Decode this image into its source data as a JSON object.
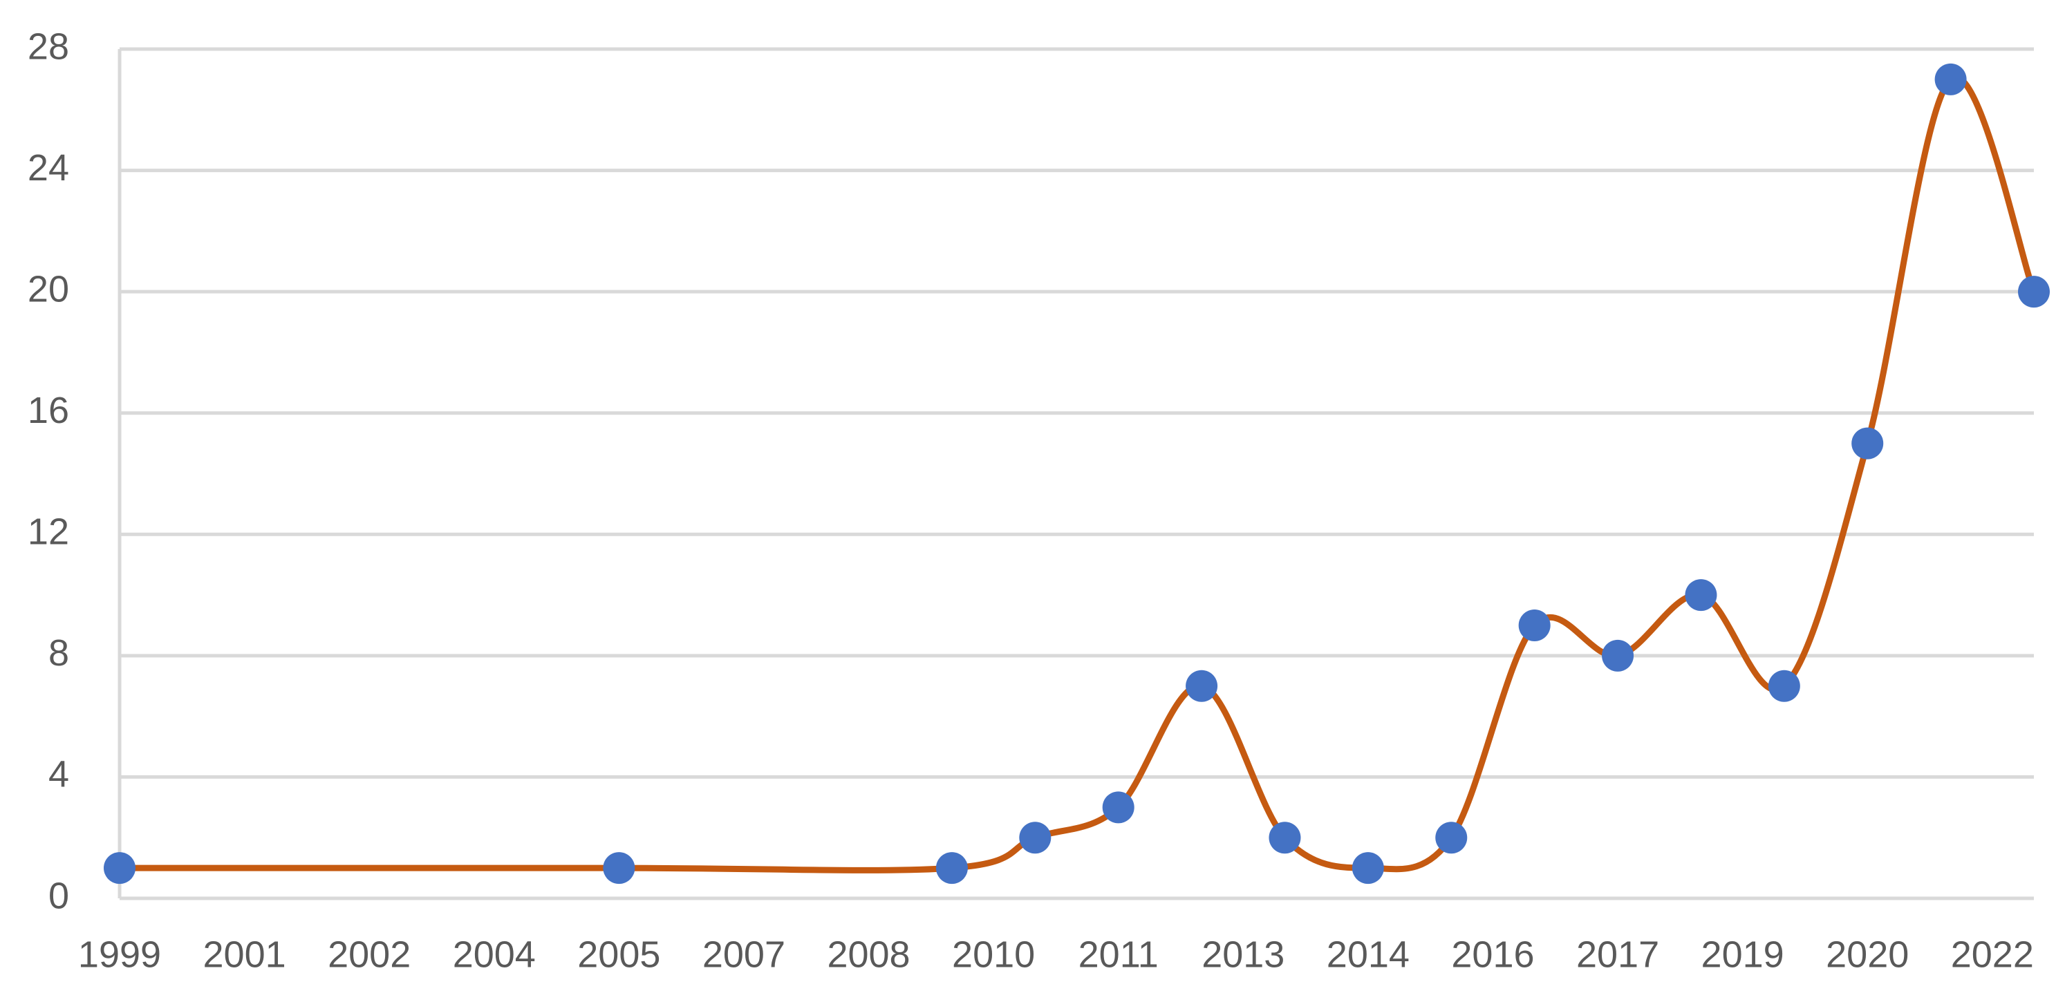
{
  "chart_data": {
    "type": "line",
    "x": [
      1999,
      2005,
      2009,
      2010,
      2011,
      2012,
      2013,
      2014,
      2015,
      2016,
      2017,
      2018,
      2019,
      2020,
      2021,
      2022
    ],
    "series": [
      {
        "color": "#c55a11",
        "marker_color": "#4472c4",
        "values": [
          1,
          1,
          1,
          2,
          3,
          7,
          2,
          1,
          2,
          9,
          8,
          10,
          7,
          15,
          27,
          20
        ]
      }
    ],
    "xlim": [
      1999,
      2022
    ],
    "xticks": [
      {
        "value": 1999,
        "label": "1999"
      },
      {
        "value": 2000.5,
        "label": "2001"
      },
      {
        "value": 2002,
        "label": "2002"
      },
      {
        "value": 2003.5,
        "label": "2004"
      },
      {
        "value": 2005,
        "label": "2005"
      },
      {
        "value": 2006.5,
        "label": "2007"
      },
      {
        "value": 2008,
        "label": "2008"
      },
      {
        "value": 2009.5,
        "label": "2010"
      },
      {
        "value": 2011,
        "label": "2011"
      },
      {
        "value": 2012.5,
        "label": "2013"
      },
      {
        "value": 2014,
        "label": "2014"
      },
      {
        "value": 2015.5,
        "label": "2016"
      },
      {
        "value": 2017,
        "label": "2017"
      },
      {
        "value": 2018.5,
        "label": "2019"
      },
      {
        "value": 2020,
        "label": "2020"
      },
      {
        "value": 2021.5,
        "label": "2022"
      }
    ],
    "ylim": [
      0,
      28
    ],
    "yticks": [
      0,
      4,
      8,
      12,
      16,
      20,
      24,
      28
    ],
    "grid": true,
    "smooth": true
  }
}
